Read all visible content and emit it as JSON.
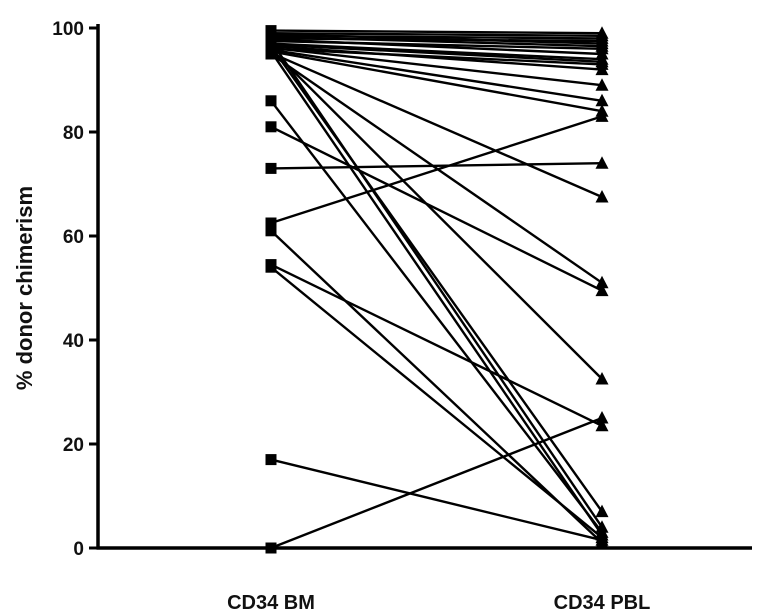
{
  "chart_data": {
    "type": "line",
    "title": "",
    "xlabel": "",
    "ylabel": "% donor chimerism",
    "categories": [
      "CD34 BM",
      "CD34 PBL"
    ],
    "ylim": [
      0,
      100
    ],
    "yticks": [
      0,
      20,
      40,
      60,
      80,
      100
    ],
    "grid": false,
    "legend": "none",
    "marker_left": "square",
    "marker_right": "triangle",
    "line_color": "#000000",
    "pairs": [
      [
        99.5,
        99.0
      ],
      [
        99.0,
        98.5
      ],
      [
        98.8,
        97.0
      ],
      [
        98.5,
        98.0
      ],
      [
        98.3,
        96.5
      ],
      [
        98.0,
        97.5
      ],
      [
        97.8,
        95.0
      ],
      [
        97.5,
        96.0
      ],
      [
        97.0,
        94.0
      ],
      [
        96.8,
        93.5
      ],
      [
        96.5,
        92.0
      ],
      [
        96.2,
        89.0
      ],
      [
        96.0,
        93.0
      ],
      [
        95.8,
        86.0
      ],
      [
        95.5,
        84.0
      ],
      [
        95.2,
        67.5
      ],
      [
        95.0,
        51.0
      ],
      [
        96.0,
        32.5
      ],
      [
        96.5,
        7.0
      ],
      [
        97.5,
        4.0
      ],
      [
        95.5,
        2.5
      ],
      [
        86.0,
        3.0
      ],
      [
        81.0,
        49.5
      ],
      [
        73.0,
        74.0
      ],
      [
        62.5,
        83.0
      ],
      [
        61.0,
        1.0
      ],
      [
        54.5,
        23.5
      ],
      [
        54.0,
        2.0
      ],
      [
        17.0,
        1.5
      ],
      [
        0.0,
        25.0
      ]
    ]
  }
}
